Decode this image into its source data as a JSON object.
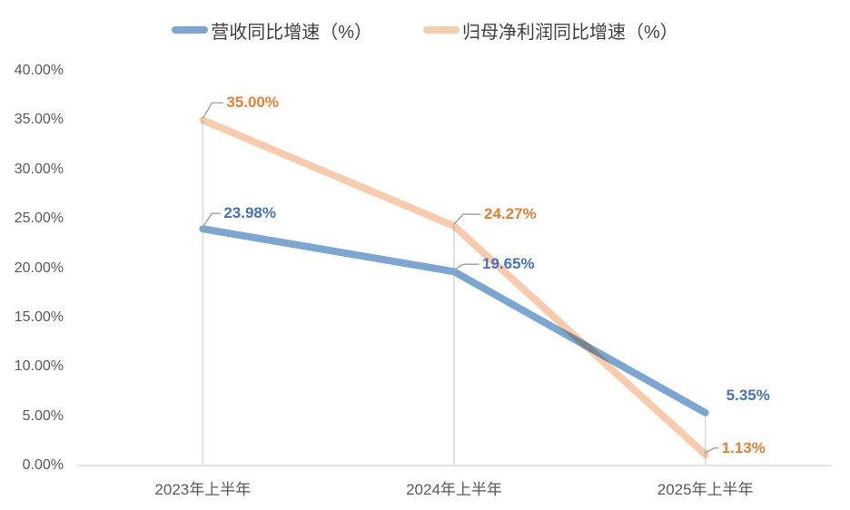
{
  "legend": {
    "items": [
      {
        "id": "revenue",
        "label": "营收同比增速（%）",
        "color": "#7ba6d2"
      },
      {
        "id": "net-profit",
        "label": "归母净利润同比增速（%）",
        "color": "#f8cbad"
      }
    ]
  },
  "chart_data": {
    "type": "line",
    "title": "",
    "xlabel": "",
    "ylabel": "",
    "categories": [
      "2023年上半年",
      "2024年上半年",
      "2025年上半年"
    ],
    "series": [
      {
        "name": "营收同比增速（%）",
        "color": "#7ba6d2",
        "label_color": "#4472c4",
        "values": [
          23.98,
          19.65,
          5.35
        ],
        "labels": [
          "23.98%",
          "19.65%",
          "5.35%"
        ]
      },
      {
        "name": "归母净利润同比增速（%）",
        "color": "#f8cbad",
        "label_color": "#ed7d31",
        "values": [
          35.0,
          24.27,
          1.13
        ],
        "labels": [
          "35.00%",
          "24.27%",
          "1.13%"
        ]
      }
    ],
    "y_ticks": [
      {
        "value": 40,
        "label": "40.00%"
      },
      {
        "value": 35,
        "label": "35.00%"
      },
      {
        "value": 30,
        "label": "30.00%"
      },
      {
        "value": 25,
        "label": "25.00%"
      },
      {
        "value": 20,
        "label": "20.00%"
      },
      {
        "value": 15,
        "label": "15.00%"
      },
      {
        "value": 10,
        "label": "10.00%"
      },
      {
        "value": 5,
        "label": "5.00%"
      },
      {
        "value": 0,
        "label": "0.00%"
      }
    ],
    "ylim": [
      0,
      40
    ],
    "grid": "vertical-drop-lines-only",
    "legend_position": "top"
  },
  "colors": {
    "background": "#ffffff",
    "axis_line": "#d9d9d9",
    "drop_line": "#d9d9d9",
    "leader_line": "#a6a6a6",
    "tick_label": "#595959",
    "legend_text": "#404040"
  }
}
